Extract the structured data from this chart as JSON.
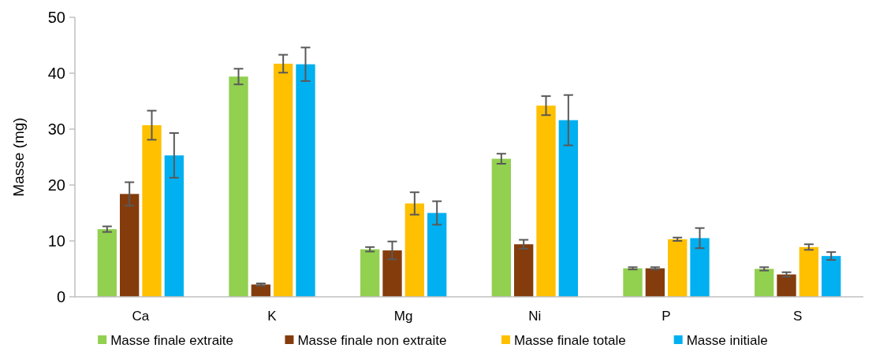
{
  "chart_data": {
    "type": "bar",
    "ylabel": "Masse (mg)",
    "categories": [
      "Ca",
      "K",
      "Mg",
      "Ni",
      "P",
      "S"
    ],
    "series": [
      {
        "name": "Masse finale extraite",
        "color": "#92d050",
        "values": [
          12.1,
          39.4,
          8.5,
          24.7,
          5.1,
          5.0
        ],
        "errors": [
          0.5,
          1.4,
          0.4,
          0.9,
          0.2,
          0.3
        ]
      },
      {
        "name": "Masse finale non extraite",
        "color": "#843c0c",
        "values": [
          18.4,
          2.2,
          8.3,
          9.4,
          5.1,
          4.0
        ],
        "errors": [
          2.1,
          0.2,
          1.6,
          0.8,
          0.2,
          0.4
        ]
      },
      {
        "name": "Masse finale totale",
        "color": "#ffc000",
        "values": [
          30.7,
          41.7,
          16.7,
          34.2,
          10.3,
          8.9
        ],
        "errors": [
          2.6,
          1.6,
          2.0,
          1.7,
          0.3,
          0.5
        ]
      },
      {
        "name": "Masse initiale",
        "color": "#00b0f0",
        "values": [
          25.3,
          41.6,
          15.0,
          31.6,
          10.5,
          7.3
        ],
        "errors": [
          4.0,
          3.0,
          2.1,
          4.5,
          1.8,
          0.7
        ]
      }
    ],
    "ylim": [
      0,
      50
    ],
    "yticks": [
      0,
      10,
      20,
      30,
      40,
      50
    ],
    "grid": false,
    "legend": "bottom"
  }
}
